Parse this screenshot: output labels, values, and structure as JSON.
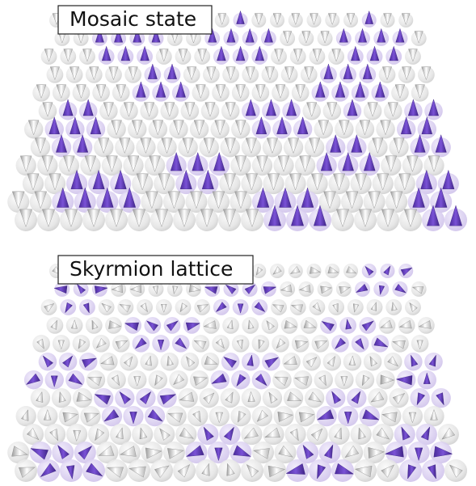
{
  "panels": [
    {
      "label": "Mosaic state"
    },
    {
      "label": "Skyrmion lattice"
    }
  ]
}
